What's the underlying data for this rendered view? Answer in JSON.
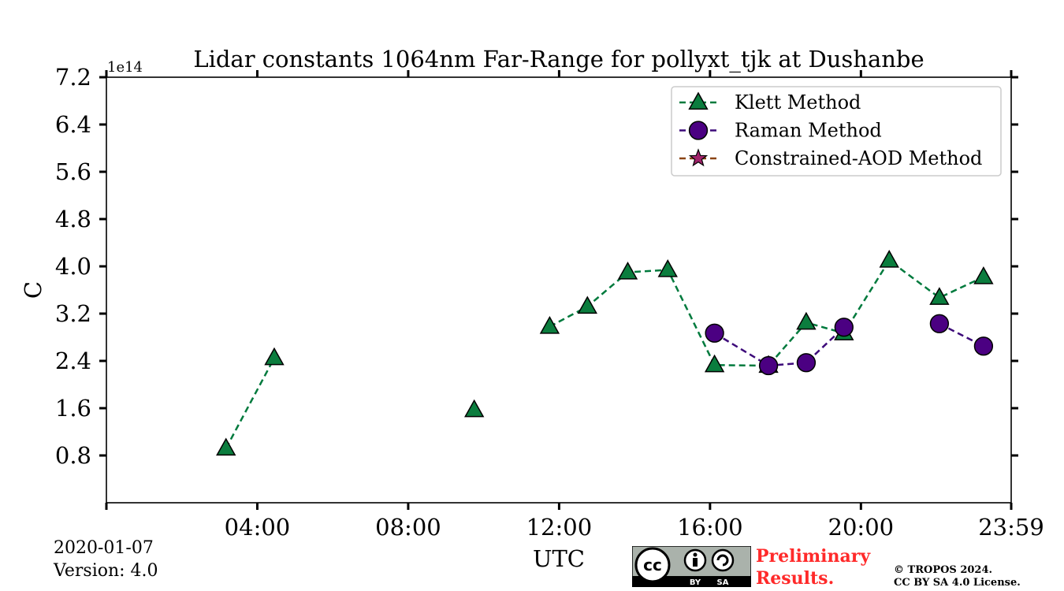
{
  "chart_data": {
    "type": "line",
    "title": "Lidar constants 1064nm Far-Range for pollyxt_tjk at Dushanbe",
    "xlabel": "UTC",
    "ylabel": "C",
    "y_offset_label": "1e14",
    "x_unit": "hours UTC",
    "xlim": [
      0,
      23.9833
    ],
    "ylim": [
      0,
      7.2
    ],
    "x_ticks": [
      0,
      4,
      8,
      12,
      16,
      20,
      23.9833
    ],
    "x_tick_labels": [
      "",
      "04:00",
      "08:00",
      "12:00",
      "16:00",
      "20:00",
      "23:59"
    ],
    "y_ticks": [
      0.8,
      1.6,
      2.4,
      3.2,
      4.0,
      4.8,
      5.6,
      6.4,
      7.2
    ],
    "y_tick_labels": [
      "0.8",
      "1.6",
      "2.4",
      "3.2",
      "4.0",
      "4.8",
      "5.6",
      "6.4",
      "7.2"
    ],
    "legend_position": "top-right",
    "series": [
      {
        "name": "Klett Method",
        "marker": "triangle",
        "color": "#007a3d",
        "marker_fill": "#0b7d3e",
        "segments": [
          [
            [
              3.17,
              0.92
            ],
            [
              4.45,
              2.45
            ]
          ],
          [
            [
              9.75,
              1.57
            ]
          ],
          [
            [
              11.75,
              2.98
            ],
            [
              12.75,
              3.32
            ],
            [
              13.82,
              3.9
            ],
            [
              14.88,
              3.94
            ],
            [
              16.12,
              2.33
            ],
            [
              17.55,
              2.32
            ],
            [
              18.55,
              3.05
            ],
            [
              19.55,
              2.87
            ],
            [
              20.75,
              4.1
            ],
            [
              22.08,
              3.47
            ],
            [
              23.25,
              3.82
            ]
          ]
        ]
      },
      {
        "name": "Raman Method",
        "marker": "circle",
        "color": "#3d0a7a",
        "marker_fill": "#4b0082",
        "segments": [
          [
            [
              16.12,
              2.87
            ],
            [
              17.55,
              2.32
            ],
            [
              18.55,
              2.37
            ],
            [
              19.55,
              2.97
            ]
          ],
          [
            [
              22.08,
              3.03
            ],
            [
              23.25,
              2.65
            ]
          ]
        ]
      },
      {
        "name": "Constrained-AOD Method",
        "marker": "star",
        "color": "#8b4513",
        "marker_fill": "#a0226a",
        "segments": []
      }
    ]
  },
  "footer": {
    "date": "2020-01-07",
    "version": "Version: 4.0",
    "preliminary_line1": "Preliminary",
    "preliminary_line2": "Results.",
    "copyright_line1": "© TROPOS 2024.",
    "copyright_line2": "CC BY SA 4.0 License.",
    "badge_cc": "cc",
    "badge_by": "BY",
    "badge_sa": "SA"
  }
}
